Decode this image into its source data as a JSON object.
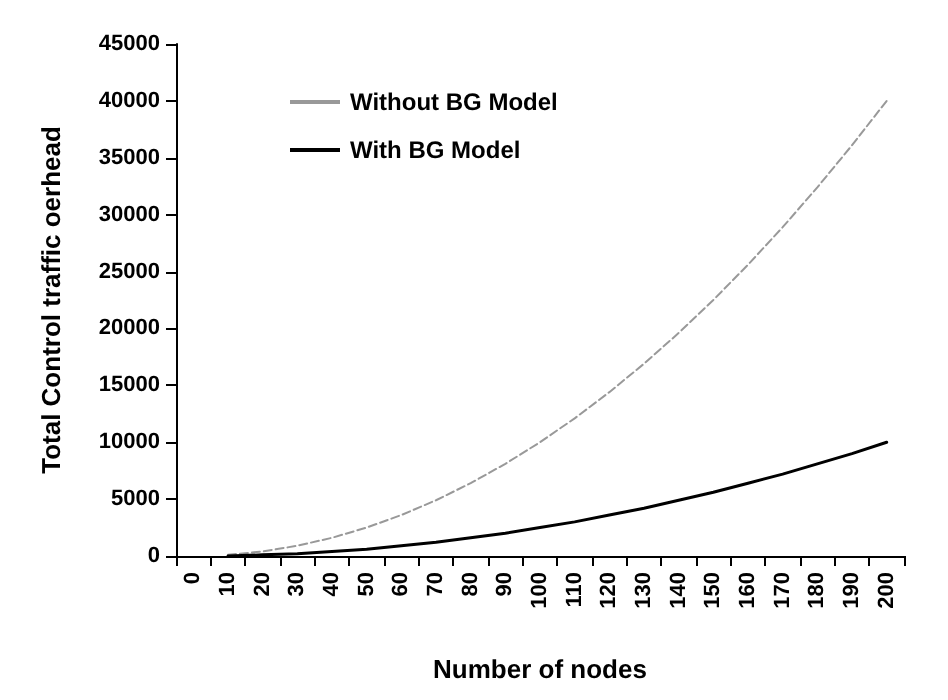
{
  "chart_data": {
    "type": "line",
    "xlabel": "Number of nodes",
    "ylabel": "Total Control traffic oerhead",
    "categories": [
      "0",
      "10",
      "20",
      "30",
      "40",
      "50",
      "60",
      "70",
      "80",
      "90",
      "100",
      "110",
      "120",
      "130",
      "140",
      "150",
      "160",
      "170",
      "180",
      "190",
      "200"
    ],
    "series": [
      {
        "name": "Without BG Model",
        "color": "#999999",
        "line_style": "dashed",
        "values": [
          null,
          100,
          400,
          900,
          1600,
          2500,
          3600,
          4900,
          6400,
          8100,
          10000,
          12100,
          14400,
          16900,
          19600,
          22500,
          25600,
          28900,
          32400,
          36100,
          40000
        ]
      },
      {
        "name": "With BG Model",
        "color": "#000000",
        "line_style": "solid",
        "values": [
          null,
          0,
          100,
          200,
          400,
          600,
          900,
          1200,
          1600,
          2000,
          2500,
          3000,
          3600,
          4200,
          4900,
          5600,
          6400,
          7200,
          8100,
          9000,
          10000
        ]
      }
    ],
    "ylim": [
      0,
      45000
    ],
    "yticks": [
      0,
      5000,
      10000,
      15000,
      20000,
      25000,
      30000,
      35000,
      40000,
      45000
    ],
    "grid": false,
    "legend": "top left",
    "marker": "none"
  }
}
